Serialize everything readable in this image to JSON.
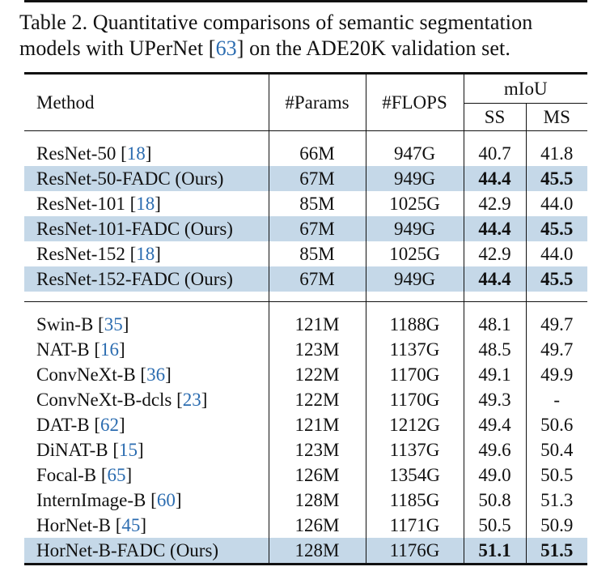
{
  "caption": {
    "text_before": "Table 2. Quantitative comparisons of semantic segmentation models with UPerNet [",
    "cite": "63",
    "text_after": "] on the ADE20K validation set."
  },
  "table": {
    "headers": {
      "method": "Method",
      "params": "#Params",
      "flops": "#FLOPS",
      "miou": "mIoU",
      "ss": "SS",
      "ms": "MS"
    },
    "groups": [
      [
        {
          "name": "ResNet-50",
          "cite": "18",
          "params": "66M",
          "flops": "947G",
          "ss": "40.7",
          "ms": "41.8",
          "highlight": false,
          "bold": false
        },
        {
          "name": "ResNet-50-FADC (Ours)",
          "cite": "",
          "params": "67M",
          "flops": "949G",
          "ss": "44.4",
          "ms": "45.5",
          "highlight": true,
          "bold": true
        },
        {
          "name": "ResNet-101",
          "cite": "18",
          "params": "85M",
          "flops": "1025G",
          "ss": "42.9",
          "ms": "44.0",
          "highlight": false,
          "bold": false
        },
        {
          "name": "ResNet-101-FADC (Ours)",
          "cite": "",
          "params": "67M",
          "flops": "949G",
          "ss": "44.4",
          "ms": "45.5",
          "highlight": true,
          "bold": true
        },
        {
          "name": "ResNet-152",
          "cite": "18",
          "params": "85M",
          "flops": "1025G",
          "ss": "42.9",
          "ms": "44.0",
          "highlight": false,
          "bold": false
        },
        {
          "name": "ResNet-152-FADC (Ours)",
          "cite": "",
          "params": "67M",
          "flops": "949G",
          "ss": "44.4",
          "ms": "45.5",
          "highlight": true,
          "bold": true
        }
      ],
      [
        {
          "name": "Swin-B",
          "cite": "35",
          "params": "121M",
          "flops": "1188G",
          "ss": "48.1",
          "ms": "49.7",
          "highlight": false,
          "bold": false
        },
        {
          "name": "NAT-B",
          "cite": "16",
          "params": "123M",
          "flops": "1137G",
          "ss": "48.5",
          "ms": "49.7",
          "highlight": false,
          "bold": false
        },
        {
          "name": "ConvNeXt-B",
          "cite": "36",
          "params": "122M",
          "flops": "1170G",
          "ss": "49.1",
          "ms": "49.9",
          "highlight": false,
          "bold": false
        },
        {
          "name": "ConvNeXt-B-dcls",
          "cite": "23",
          "params": "122M",
          "flops": "1170G",
          "ss": "49.3",
          "ms": "-",
          "highlight": false,
          "bold": false
        },
        {
          "name": "DAT-B",
          "cite": "62",
          "params": "121M",
          "flops": "1212G",
          "ss": "49.4",
          "ms": "50.6",
          "highlight": false,
          "bold": false
        },
        {
          "name": "DiNAT-B",
          "cite": "15",
          "params": "123M",
          "flops": "1137G",
          "ss": "49.6",
          "ms": "50.4",
          "highlight": false,
          "bold": false
        },
        {
          "name": "Focal-B",
          "cite": "65",
          "params": "126M",
          "flops": "1354G",
          "ss": "49.0",
          "ms": "50.5",
          "highlight": false,
          "bold": false
        },
        {
          "name": "InternImage-B",
          "cite": "60",
          "params": "128M",
          "flops": "1185G",
          "ss": "50.8",
          "ms": "51.3",
          "highlight": false,
          "bold": false
        },
        {
          "name": "HorNet-B",
          "cite": "45",
          "params": "126M",
          "flops": "1171G",
          "ss": "50.5",
          "ms": "50.9",
          "highlight": false,
          "bold": false
        },
        {
          "name": "HorNet-B-FADC (Ours)",
          "cite": "",
          "params": "128M",
          "flops": "1176G",
          "ss": "51.1",
          "ms": "51.5",
          "highlight": true,
          "bold": true
        }
      ]
    ]
  }
}
